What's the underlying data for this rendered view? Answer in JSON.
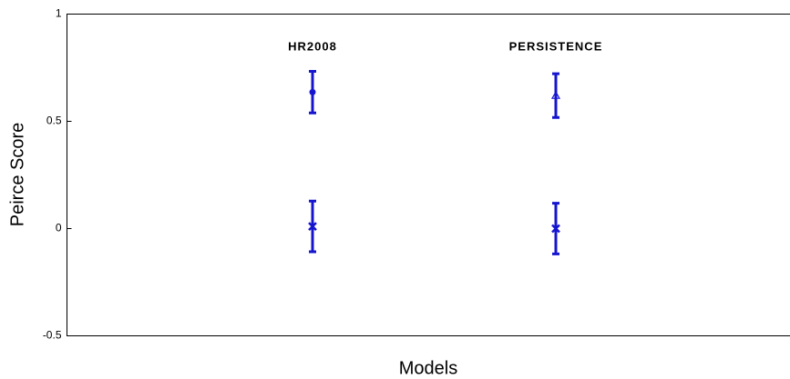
{
  "chart_data": {
    "type": "errorbar",
    "xlabel": "Models",
    "ylabel": "Peirce Score",
    "categories": [
      "HR2008",
      "PERSISTENCE"
    ],
    "series": [
      {
        "color": "#1515d0",
        "markers": [
          "circle",
          "triangle"
        ],
        "values": [
          0.636,
          0.62
        ],
        "errors": [
          0.097,
          0.102
        ]
      },
      {
        "color": "#1515d0",
        "markers": [
          "x",
          "x"
        ],
        "values": [
          0.01,
          0.0
        ],
        "errors": [
          0.118,
          0.118
        ]
      }
    ],
    "ylim": [
      -0.5,
      1
    ],
    "yticks": [
      1,
      0.5,
      0,
      -0.5
    ],
    "grid": false
  }
}
